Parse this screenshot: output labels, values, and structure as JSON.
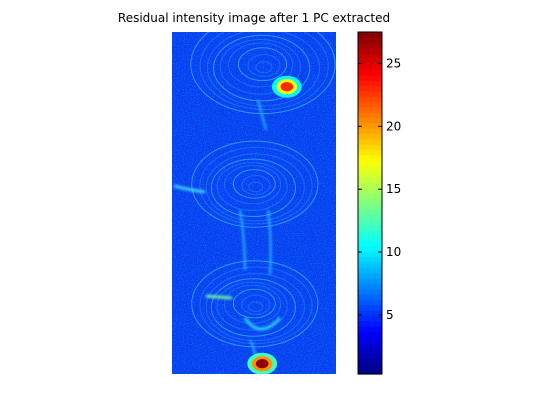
{
  "chart_data": [
    {
      "type": "heatmap",
      "title": "Residual intensity image after 1 PC extracted",
      "colormap": "jet",
      "grid": false,
      "axes_visible": false,
      "features": [
        {
          "kind": "swirl",
          "description": "concentric contour rings",
          "rel_x": 0.55,
          "rel_y": 0.1,
          "rel_r": 0.4
        },
        {
          "kind": "swirl",
          "description": "concentric contour rings",
          "rel_x": 0.5,
          "rel_y": 0.45,
          "rel_r": 0.35
        },
        {
          "kind": "swirl",
          "description": "concentric contour rings",
          "rel_x": 0.5,
          "rel_y": 0.8,
          "rel_r": 0.35
        },
        {
          "kind": "hotspot",
          "value": 23,
          "rel_x": 0.7,
          "rel_y": 0.16
        },
        {
          "kind": "hotspot",
          "value": 27,
          "rel_x": 0.55,
          "rel_y": 0.97
        }
      ]
    },
    {
      "type": "colorbar",
      "range": [
        0.3,
        27.5
      ],
      "ticks": [
        5,
        10,
        15,
        20,
        25
      ],
      "tick_labels": [
        "5",
        "10",
        "15",
        "20",
        "25"
      ]
    }
  ]
}
